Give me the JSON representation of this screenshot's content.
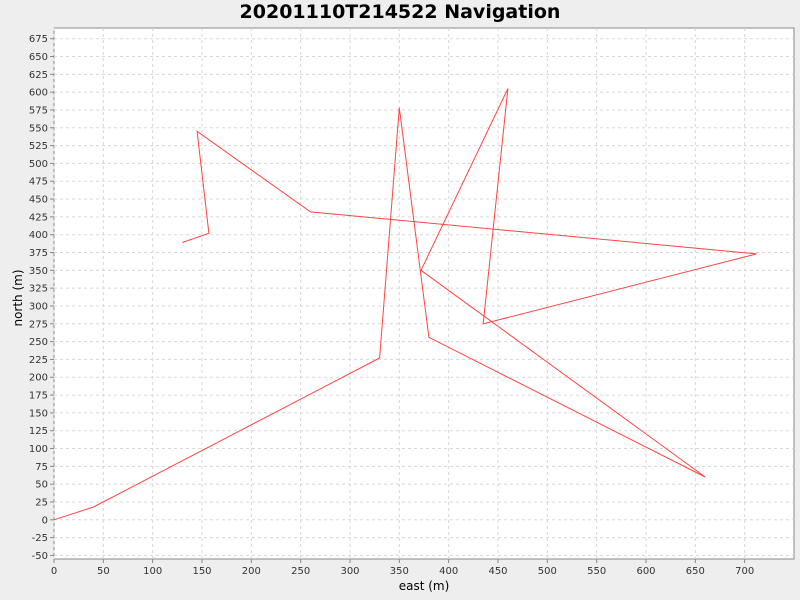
{
  "chart_data": {
    "type": "line",
    "title": "20201110T214522 Navigation",
    "xlabel": "east (m)",
    "ylabel": "north (m)",
    "xlim": [
      0,
      750
    ],
    "ylim": [
      -55,
      690
    ],
    "xticks": [
      0,
      50,
      100,
      150,
      200,
      250,
      300,
      350,
      400,
      450,
      500,
      550,
      600,
      650,
      700
    ],
    "yticks": [
      -50,
      -25,
      0,
      25,
      50,
      75,
      100,
      125,
      150,
      175,
      200,
      225,
      250,
      275,
      300,
      325,
      350,
      375,
      400,
      425,
      450,
      475,
      500,
      525,
      550,
      575,
      600,
      625,
      650,
      675
    ],
    "grid": true,
    "series": [
      {
        "name": "",
        "color": "#ff4444",
        "points": [
          [
            0,
            0
          ],
          [
            40,
            18
          ],
          [
            330,
            227
          ],
          [
            350,
            578
          ],
          [
            380,
            256
          ],
          [
            660,
            60
          ],
          [
            372,
            350
          ],
          [
            460,
            605
          ],
          [
            435,
            275
          ],
          [
            712,
            373
          ],
          [
            260,
            432
          ],
          [
            145,
            545
          ],
          [
            157,
            402
          ],
          [
            130,
            389
          ]
        ]
      }
    ]
  }
}
